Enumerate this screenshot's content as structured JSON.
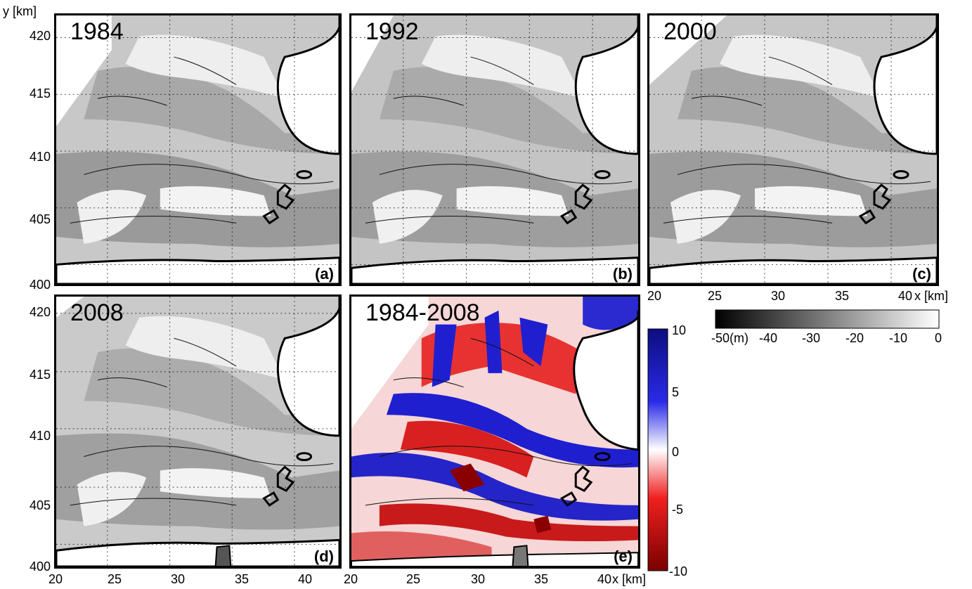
{
  "axes": {
    "y_label": "y [km]",
    "x_label": "x [km]",
    "x_ticks": [
      "20",
      "25",
      "30",
      "35",
      "40"
    ],
    "y_ticks": [
      "420",
      "415",
      "410",
      "405",
      "400"
    ]
  },
  "panels": [
    {
      "year": "1984",
      "letter": "(a)"
    },
    {
      "year": "1992",
      "letter": "(b)"
    },
    {
      "year": "2000",
      "letter": "(c)"
    },
    {
      "year": "2008",
      "letter": "(d)"
    },
    {
      "year": "1984-2008",
      "letter": "(e)"
    }
  ],
  "depth_colorbar": {
    "ticks": [
      "-50(m)",
      "-40",
      "-30",
      "-20",
      "-10",
      "0"
    ],
    "range": [
      -50,
      0
    ],
    "colors": [
      "#000000",
      "#ffffff"
    ]
  },
  "change_colorbar": {
    "ticks": [
      "10",
      "5",
      "0",
      "-5",
      "-10"
    ],
    "range": [
      -10,
      10
    ],
    "colors": {
      "positive": "#1a1aa8",
      "zero": "#ffffff",
      "negative": "#a80000"
    }
  }
}
